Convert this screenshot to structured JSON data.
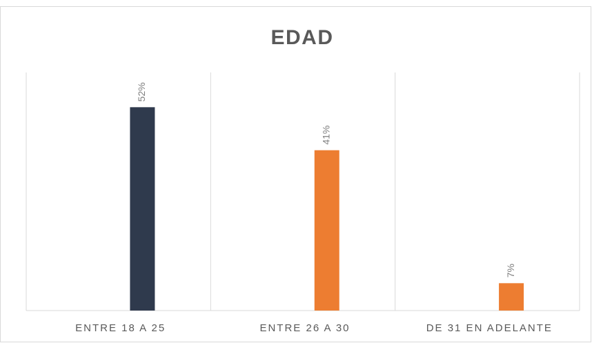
{
  "chart_data": {
    "type": "bar",
    "title": "EDAD",
    "categories": [
      "ENTRE 18 A 25",
      "ENTRE 26 A 30",
      "DE 31 EN ADELANTE"
    ],
    "values": [
      52,
      41,
      7
    ],
    "value_labels": [
      "52%",
      "41%",
      "7%"
    ],
    "colors": [
      "#2f3a4d",
      "#ed7d31",
      "#ed7d31"
    ],
    "ylim": [
      0,
      60
    ]
  }
}
